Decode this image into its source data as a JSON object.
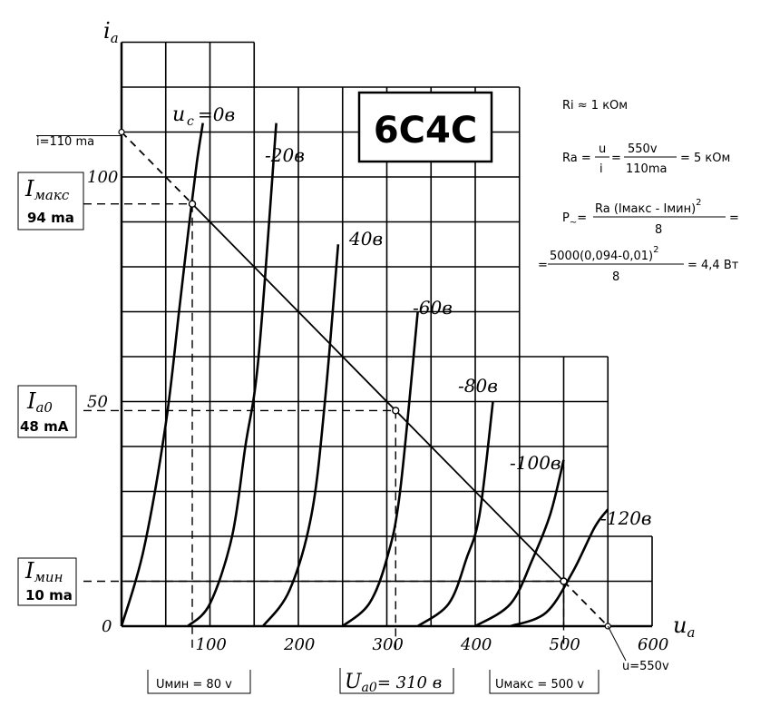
{
  "chart_data": {
    "type": "line",
    "title": "6С4С",
    "xlabel": "u",
    "xlabel_sub": "a",
    "ylabel": "i",
    "ylabel_sub": "a",
    "xlim": [
      0,
      600
    ],
    "ylim": [
      0,
      125
    ],
    "x_ticks": [
      "0",
      "100",
      "200",
      "300",
      "400",
      "500",
      "600"
    ],
    "y_ticks": [
      "100",
      "50"
    ],
    "grid": true,
    "series_labels": [
      "u",
      "c",
      "=0в",
      "-20в",
      "40в",
      "-60в",
      "-80в",
      "-100в",
      "-120в"
    ],
    "series": [
      {
        "name": "uc=0в",
        "x": [
          0,
          25,
          50,
          65,
          75,
          85,
          92
        ],
        "y": [
          0,
          17,
          45,
          70,
          87,
          103,
          112
        ]
      },
      {
        "name": "-20в",
        "x": [
          75,
          100,
          125,
          140,
          155,
          175
        ],
        "y": [
          0,
          5,
          20,
          40,
          60,
          112
        ]
      },
      {
        "name": "40в",
        "x": [
          160,
          190,
          215,
          230,
          245
        ],
        "y": [
          0,
          8,
          25,
          50,
          85
        ]
      },
      {
        "name": "-60в",
        "x": [
          250,
          280,
          300,
          315,
          335
        ],
        "y": [
          0,
          5,
          15,
          30,
          70
        ]
      },
      {
        "name": "-80в",
        "x": [
          335,
          370,
          390,
          405,
          420
        ],
        "y": [
          0,
          5,
          15,
          25,
          50
        ]
      },
      {
        "name": "-100в",
        "x": [
          400,
          440,
          465,
          485,
          500
        ],
        "y": [
          0,
          5,
          15,
          25,
          37
        ]
      },
      {
        "name": "-120в",
        "x": [
          440,
          480,
          510,
          535,
          550
        ],
        "y": [
          0,
          3,
          12,
          22,
          26
        ]
      }
    ],
    "load_line": {
      "x": [
        0,
        550
      ],
      "y": [
        110,
        0
      ]
    },
    "operating_points": [
      {
        "x": 80,
        "y": 94
      },
      {
        "x": 310,
        "y": 48
      },
      {
        "x": 500,
        "y": 10
      }
    ],
    "annotations": {
      "i_110": "i=110 ma",
      "imax_label": "I",
      "imax_sub": "макс",
      "imax_val": "94 ma",
      "ia0_label": "I",
      "ia0_sub": "a0",
      "ia0_val": "48 mA",
      "imin_label": "I",
      "imin_sub": "мин",
      "imin_val": "10 ma",
      "umin": "Uмин = 80 v",
      "ua0_label": "U",
      "ua0_sub": "a0",
      "ua0_val": "= 310 в",
      "umax": "Uмакс = 500 v",
      "u_550": "u=550v"
    }
  },
  "formulas": {
    "ri": "Ri ≈ 1 кОм",
    "ra_lhs": "Ra =",
    "ra_u": "u",
    "ra_i": "i",
    "ra_eq": "=",
    "ra_550": "550v",
    "ra_110": "110ma",
    "ra_res": "= 5 кОм",
    "p_lhs": "P",
    "p_sub": "~",
    "p_eq": "=",
    "p_num": "Ra (Iмакс - Iмин)",
    "p_exp": "2",
    "p_den": "8",
    "p_tail": "=",
    "p2_eq": "=",
    "p2_num": "5000(0,094-0,01)",
    "p2_exp": "2",
    "p2_den": "8",
    "p2_res": "= 4,4 Вт"
  }
}
